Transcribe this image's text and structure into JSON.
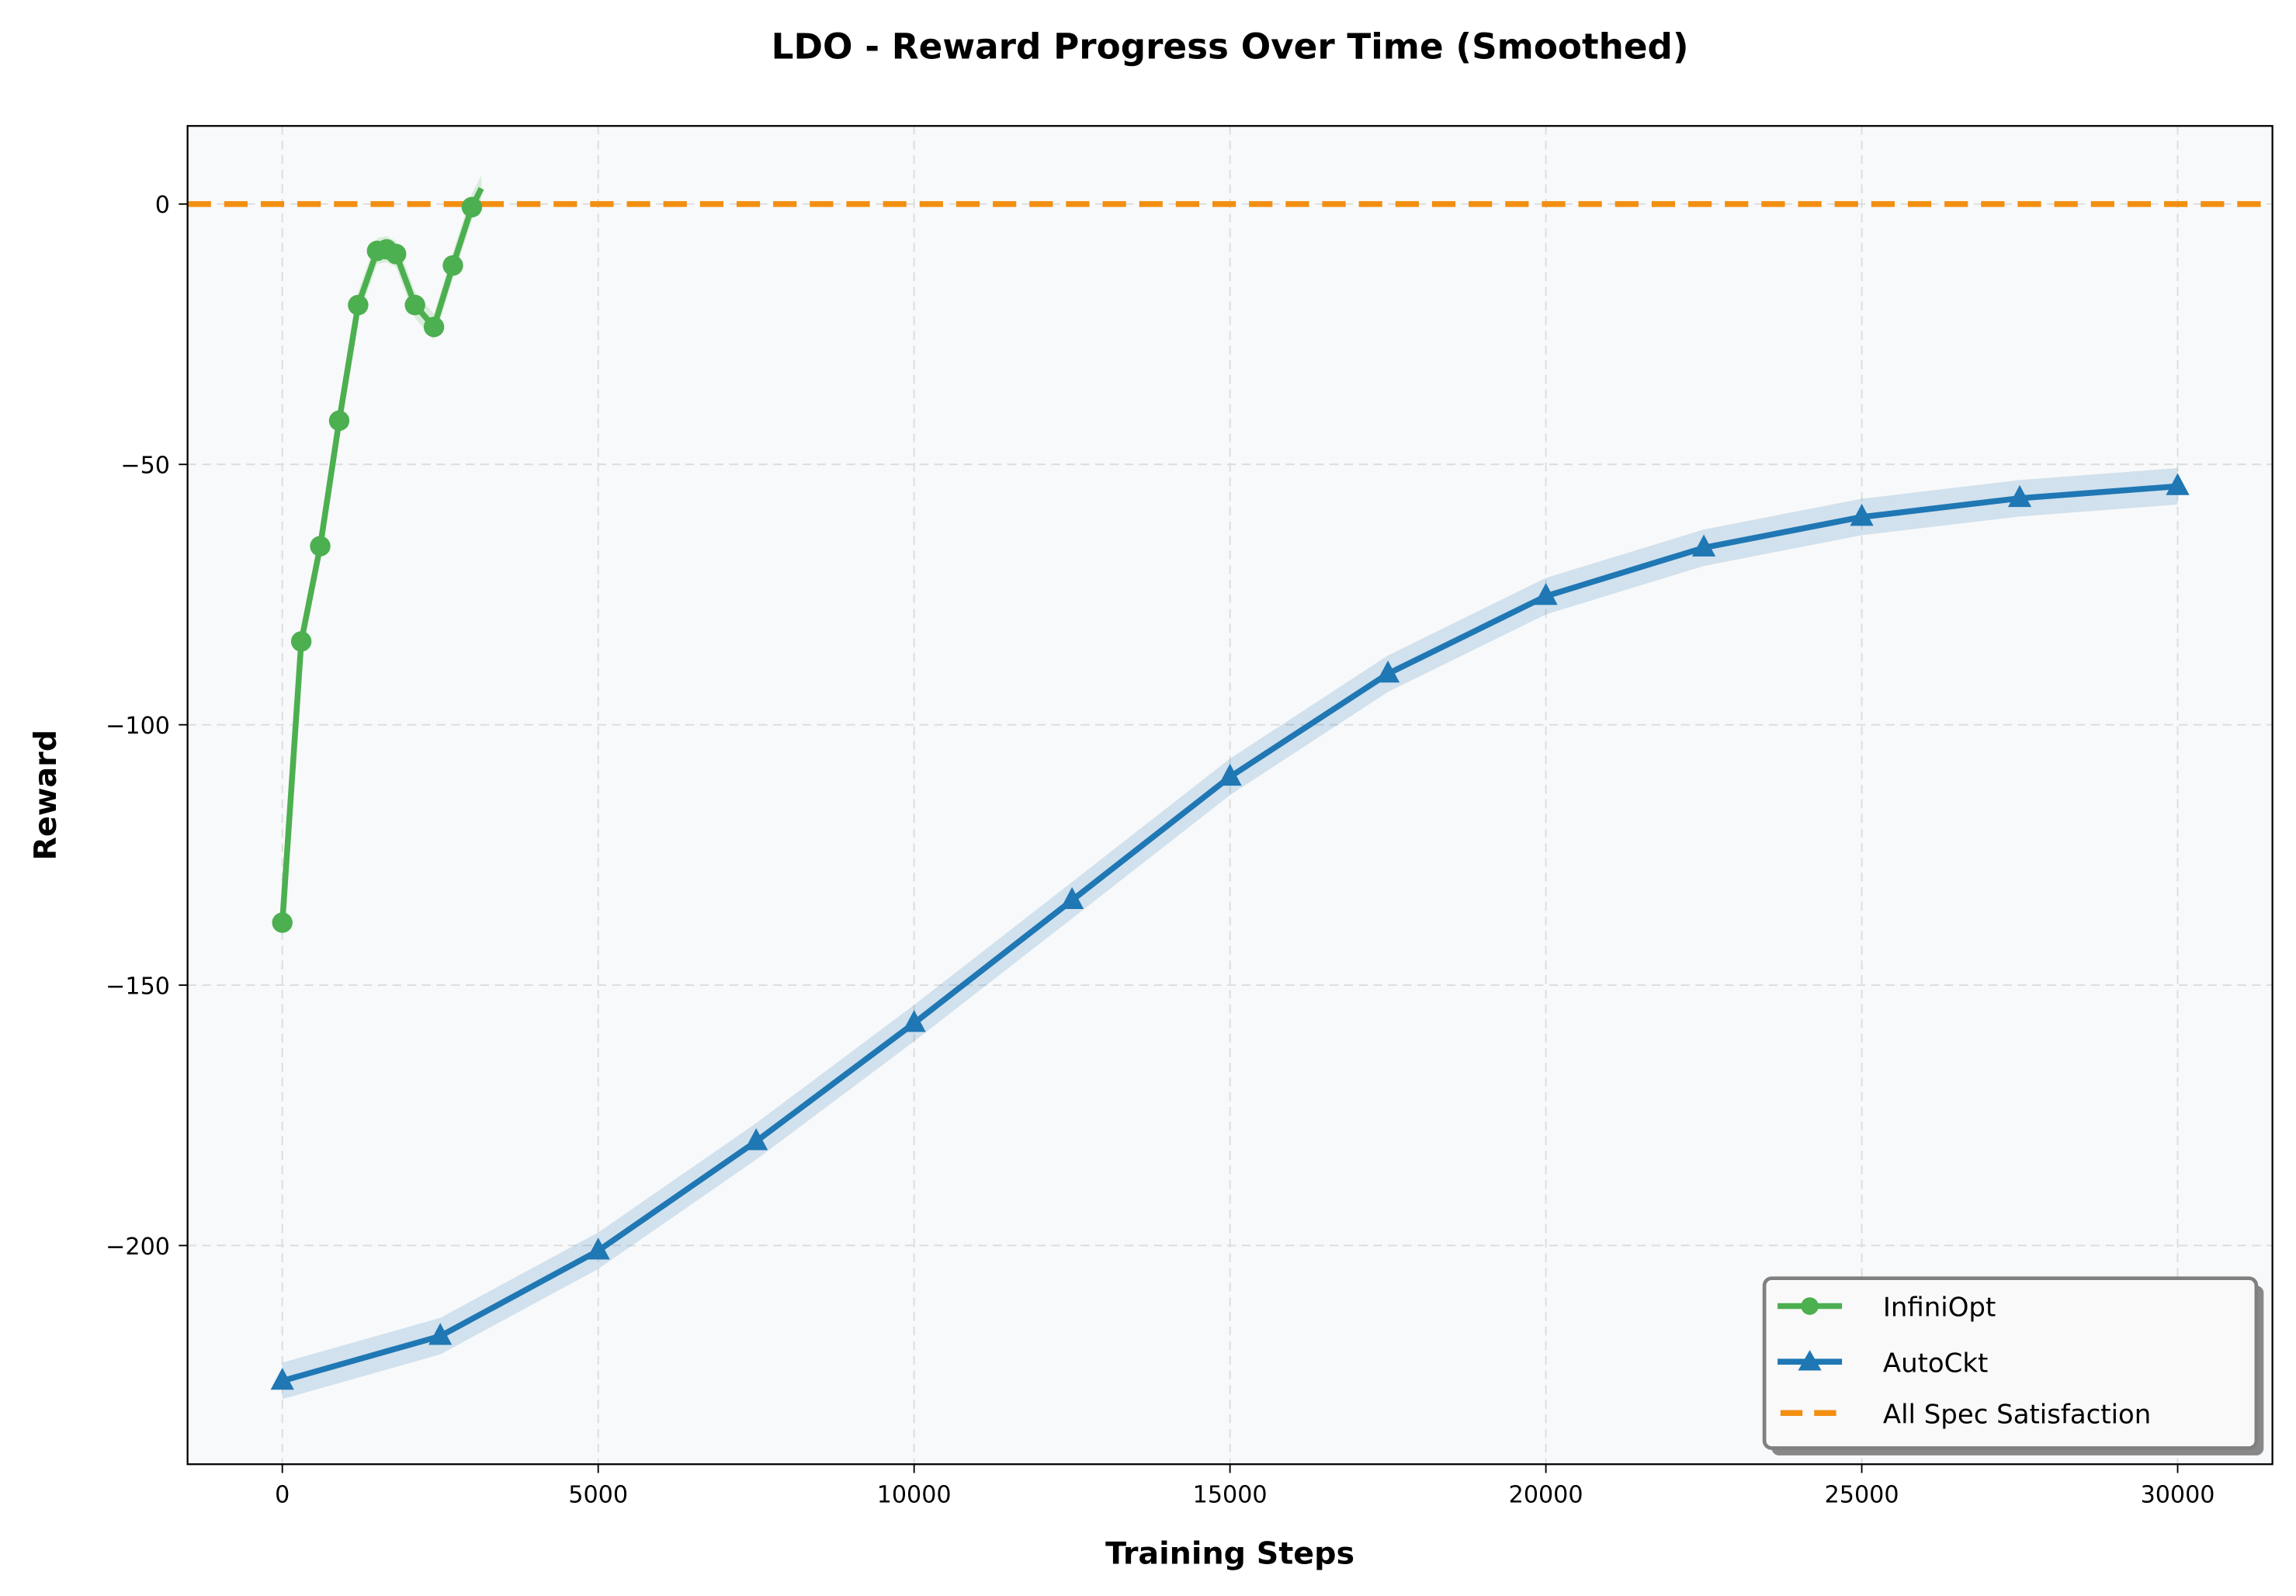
{
  "chart_data": {
    "type": "line",
    "title": "LDO - Reward Progress Over Time (Smoothed)",
    "xlabel": "Training Steps",
    "ylabel": "Reward",
    "xlim": [
      -1500,
      31500
    ],
    "ylim": [
      -242,
      15
    ],
    "xticks": [
      0,
      5000,
      10000,
      15000,
      20000,
      25000,
      30000
    ],
    "yticks": [
      0,
      -50,
      -100,
      -150,
      -200
    ],
    "grid": true,
    "legend_position": "lower-right",
    "colors": {
      "InfiniOpt": "#4caf50",
      "AutoCkt": "#1f77b4",
      "All Spec Satisfaction": "#f28e10",
      "background": "#f8f9fa"
    },
    "series": [
      {
        "name": "InfiniOpt",
        "marker": "circle",
        "x": [
          0,
          300,
          600,
          900,
          1200,
          1500,
          1650,
          1800,
          2100,
          2400,
          2700,
          3000
        ],
        "y": [
          -138,
          -84,
          -65.7,
          -41.6,
          -19.4,
          -9,
          -8.7,
          -9.6,
          -19.4,
          -23.6,
          -11.8,
          -0.6
        ],
        "line_end": [
          3150,
          3
        ]
      },
      {
        "name": "AutoCkt",
        "marker": "triangle",
        "x": [
          0,
          2500,
          5000,
          7500,
          10000,
          12500,
          15000,
          17500,
          20000,
          22500,
          25000,
          27500,
          30000
        ],
        "y": [
          -226,
          -217.4,
          -201,
          -180,
          -157.3,
          -133.7,
          -110,
          -90.2,
          -75.3,
          -66,
          -60.1,
          -56.5,
          -54.2
        ]
      },
      {
        "name": "All Spec Satisfaction",
        "style": "dashed",
        "y_constant": 0
      }
    ]
  }
}
